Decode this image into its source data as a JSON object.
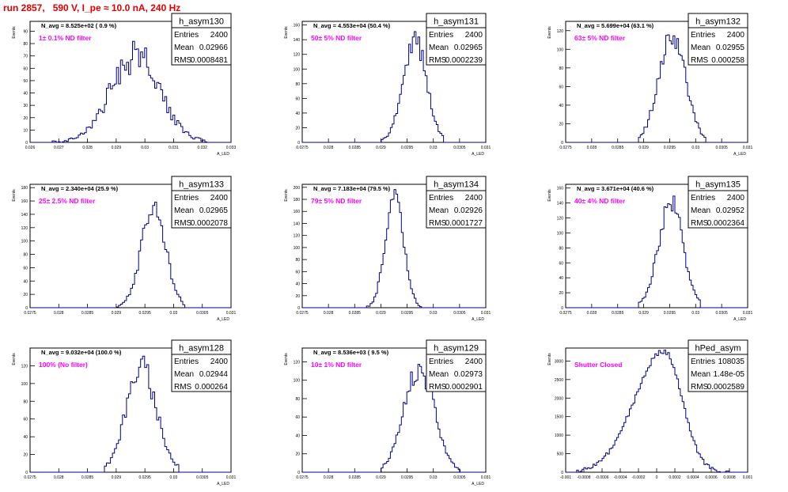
{
  "header": {
    "title": "run 2857,   590 V, I_pe ≈ 10.0 nA, 240 Hz"
  },
  "stats_labels": {
    "entries": "Entries",
    "mean": "Mean",
    "rms": "RMS"
  },
  "colors": {
    "histogram_line": "#00008b",
    "annotation": "#ff00ff",
    "title": "#e00000",
    "frame": "#000000"
  },
  "chart_data": [
    {
      "type": "histogram",
      "name": "h_asym130",
      "navg": "N_avg = 8.525e+02 ( 0.9 %)",
      "filter": "1± 0.1% ND filter",
      "entries": "2400",
      "mean": "0.02966",
      "rms": "0.0008481",
      "xlabel": "A_LED",
      "ylabel": "Events",
      "xlim": [
        0.026,
        0.033
      ],
      "ylim": [
        0,
        98
      ],
      "xticks": [
        0.026,
        0.027,
        0.028,
        0.029,
        0.03,
        0.031,
        0.032,
        0.033
      ],
      "xtick_labels": [
        "0.026",
        "0.027",
        "0.028",
        "0.029",
        "0.03",
        "0.031",
        "0.032",
        "0.033"
      ],
      "yticks": [
        0,
        10,
        20,
        30,
        40,
        50,
        60,
        70,
        80,
        90
      ],
      "ytick_labels": [
        "0",
        "10",
        "20",
        "30",
        "40",
        "50",
        "60",
        "70",
        "80",
        "90"
      ],
      "shape": {
        "mu": 0.02966,
        "sigma": 0.00085,
        "peak": 70,
        "noise": 0.22,
        "xmin": 0.0268,
        "xmax": 0.0322,
        "seed": 130
      }
    },
    {
      "type": "histogram",
      "name": "h_asym131",
      "navg": "N_avg = 4.553e+04 (50.4 %)",
      "filter": "50± 5% ND filter",
      "entries": "2400",
      "mean": "0.02965",
      "rms": "0.0002239",
      "xlabel": "A_LED",
      "ylabel": "Events",
      "xlim": [
        0.0275,
        0.031
      ],
      "ylim": [
        0,
        165
      ],
      "xticks": [
        0.0275,
        0.028,
        0.0285,
        0.029,
        0.0295,
        0.03,
        0.0305,
        0.031
      ],
      "xtick_labels": [
        "0.0275",
        "0.028",
        "0.0285",
        "0.029",
        "0.0295",
        "0.03",
        "0.0305",
        "0.031"
      ],
      "yticks": [
        0,
        20,
        40,
        60,
        80,
        100,
        120,
        140,
        160
      ],
      "ytick_labels": [
        "0",
        "20",
        "40",
        "60",
        "80",
        "100",
        "120",
        "140",
        "160"
      ],
      "shape": {
        "mu": 0.02965,
        "sigma": 0.000224,
        "peak": 140,
        "noise": 0.1,
        "xmin": 0.029,
        "xmax": 0.0302,
        "seed": 131
      }
    },
    {
      "type": "histogram",
      "name": "h_asym132",
      "navg": "N_avg = 5.699e+04 (63.1 %)",
      "filter": "63± 5% ND filter",
      "entries": "2400",
      "mean": "0.02955",
      "rms": "0.000258",
      "xlabel": "A_LED",
      "ylabel": "Events",
      "xlim": [
        0.0275,
        0.031
      ],
      "ylim": [
        0,
        130
      ],
      "xticks": [
        0.0275,
        0.028,
        0.0285,
        0.029,
        0.0295,
        0.03,
        0.0305,
        0.031
      ],
      "xtick_labels": [
        "0.0275",
        "0.028",
        "0.0285",
        "0.029",
        "0.0295",
        "0.03",
        "0.0305",
        "0.031"
      ],
      "yticks": [
        0,
        20,
        40,
        60,
        80,
        100,
        120
      ],
      "ytick_labels": [
        "0",
        "20",
        "40",
        "60",
        "80",
        "100",
        "120"
      ],
      "shape": {
        "mu": 0.02955,
        "sigma": 0.000258,
        "peak": 115,
        "noise": 0.1,
        "xmin": 0.0289,
        "xmax": 0.0302,
        "seed": 132
      }
    },
    {
      "type": "histogram",
      "name": "h_asym133",
      "navg": "N_avg = 2.340e+04 (25.9 %)",
      "filter": "25± 2.5% ND filter",
      "entries": "2400",
      "mean": "0.02965",
      "rms": "0.0002078",
      "xlabel": "A_LED",
      "ylabel": "Events",
      "xlim": [
        0.0275,
        0.031
      ],
      "ylim": [
        0,
        185
      ],
      "xticks": [
        0.0275,
        0.028,
        0.0285,
        0.029,
        0.0295,
        0.03,
        0.0305,
        0.031
      ],
      "xtick_labels": [
        "0.0275",
        "0.028",
        "0.0285",
        "0.029",
        "0.0295",
        "0.03",
        "0.0305",
        "0.031"
      ],
      "yticks": [
        0,
        20,
        40,
        60,
        80,
        100,
        120,
        140,
        160,
        180
      ],
      "ytick_labels": [
        "0",
        "20",
        "40",
        "60",
        "80",
        "100",
        "120",
        "140",
        "160",
        "180"
      ],
      "shape": {
        "mu": 0.02965,
        "sigma": 0.000208,
        "peak": 155,
        "noise": 0.1,
        "xmin": 0.029,
        "xmax": 0.0302,
        "seed": 133
      }
    },
    {
      "type": "histogram",
      "name": "h_asym134",
      "navg": "N_avg = 7.183e+04 (79.5 %)",
      "filter": "79± 5% ND filter",
      "entries": "2400",
      "mean": "0.02926",
      "rms": "0.0001727",
      "xlabel": "A_LED",
      "ylabel": "Events",
      "xlim": [
        0.0275,
        0.031
      ],
      "ylim": [
        0,
        205
      ],
      "xticks": [
        0.0275,
        0.028,
        0.0285,
        0.029,
        0.0295,
        0.03,
        0.0305,
        0.031
      ],
      "xtick_labels": [
        "0.0275",
        "0.028",
        "0.0285",
        "0.029",
        "0.0295",
        "0.03",
        "0.0305",
        "0.031"
      ],
      "yticks": [
        0,
        20,
        40,
        60,
        80,
        100,
        120,
        140,
        160,
        180,
        200
      ],
      "ytick_labels": [
        "0",
        "20",
        "40",
        "60",
        "80",
        "100",
        "120",
        "140",
        "160",
        "180",
        "200"
      ],
      "shape": {
        "mu": 0.02926,
        "sigma": 0.000173,
        "peak": 185,
        "noise": 0.08,
        "xmin": 0.0287,
        "xmax": 0.0298,
        "seed": 134
      }
    },
    {
      "type": "histogram",
      "name": "h_asym135",
      "navg": "N_avg = 3.671e+04 (40.6 %)",
      "filter": "40± 4% ND filter",
      "entries": "2400",
      "mean": "0.02952",
      "rms": "0.0002364",
      "xlabel": "A_LED",
      "ylabel": "Events",
      "xlim": [
        0.0275,
        0.031
      ],
      "ylim": [
        0,
        165
      ],
      "xticks": [
        0.0275,
        0.028,
        0.0285,
        0.029,
        0.0295,
        0.03,
        0.0305,
        0.031
      ],
      "xtick_labels": [
        "0.0275",
        "0.028",
        "0.0285",
        "0.029",
        "0.0295",
        "0.03",
        "0.0305",
        "0.031"
      ],
      "yticks": [
        0,
        20,
        40,
        60,
        80,
        100,
        120,
        140,
        160
      ],
      "ytick_labels": [
        "0",
        "20",
        "40",
        "60",
        "80",
        "100",
        "120",
        "140",
        "160"
      ],
      "shape": {
        "mu": 0.02952,
        "sigma": 0.000236,
        "peak": 140,
        "noise": 0.1,
        "xmin": 0.0289,
        "xmax": 0.0301,
        "seed": 135
      }
    },
    {
      "type": "histogram",
      "name": "h_asym128",
      "navg": "N_avg = 9.032e+04 (100.0 %)",
      "filter": "100% (No filter)",
      "entries": "2400",
      "mean": "0.02944",
      "rms": "0.000264",
      "xlabel": "A_LED",
      "ylabel": "Events",
      "xlim": [
        0.0275,
        0.031
      ],
      "ylim": [
        0,
        140
      ],
      "xticks": [
        0.0275,
        0.028,
        0.0285,
        0.029,
        0.0295,
        0.03,
        0.0305,
        0.031
      ],
      "xtick_labels": [
        "0.0275",
        "0.028",
        "0.0285",
        "0.029",
        "0.0295",
        "0.03",
        "0.0305",
        "0.031"
      ],
      "yticks": [
        0,
        20,
        40,
        60,
        80,
        100,
        120
      ],
      "ytick_labels": [
        "0",
        "20",
        "40",
        "60",
        "80",
        "100",
        "120"
      ],
      "shape": {
        "mu": 0.02944,
        "sigma": 0.000264,
        "peak": 118,
        "noise": 0.12,
        "xmin": 0.0288,
        "xmax": 0.0301,
        "seed": 128
      }
    },
    {
      "type": "histogram",
      "name": "h_asym129",
      "navg": "N_avg = 8.536e+03 ( 9.5 %)",
      "filter": "10± 1% ND filter",
      "entries": "2400",
      "mean": "0.02973",
      "rms": "0.0002901",
      "xlabel": "A_LED",
      "ylabel": "Events",
      "xlim": [
        0.0275,
        0.031
      ],
      "ylim": [
        0,
        135
      ],
      "xticks": [
        0.0275,
        0.028,
        0.0285,
        0.029,
        0.0295,
        0.03,
        0.0305,
        0.031
      ],
      "xtick_labels": [
        "0.0275",
        "0.028",
        "0.0285",
        "0.029",
        "0.0295",
        "0.03",
        "0.0305",
        "0.031"
      ],
      "yticks": [
        0,
        20,
        40,
        60,
        80,
        100,
        120
      ],
      "ytick_labels": [
        "0",
        "20",
        "40",
        "60",
        "80",
        "100",
        "120"
      ],
      "shape": {
        "mu": 0.02973,
        "sigma": 0.00029,
        "peak": 112,
        "noise": 0.14,
        "xmin": 0.029,
        "xmax": 0.0305,
        "seed": 129
      }
    },
    {
      "type": "histogram",
      "name": "hPed_asym",
      "navg": "",
      "filter": "Shutter Closed",
      "entries": "108035",
      "mean": "1.48e-05",
      "rms": "0.0002589",
      "xlabel": "",
      "ylabel": "Events",
      "xlim": [
        -0.001,
        0.001
      ],
      "ylim": [
        0,
        3350
      ],
      "xticks": [
        -0.001,
        -0.0008,
        -0.0006,
        -0.0004,
        -0.0002,
        0,
        0.0002,
        0.0004,
        0.0006,
        0.0008,
        0.001
      ],
      "xtick_labels": [
        "-0.001",
        "-0.0008",
        "-0.0006",
        "-0.0004",
        "-0.0002",
        "0",
        "0.0002",
        "0.0004",
        "0.0006",
        "0.0008",
        "0.001"
      ],
      "yticks": [
        0,
        500,
        1000,
        1500,
        2000,
        2500,
        3000
      ],
      "ytick_labels": [
        "0",
        "500",
        "1000",
        "1500",
        "2000",
        "2500",
        "3000"
      ],
      "shape": {
        "mu": 8e-05,
        "sigma": 0.00026,
        "sigma_left": 0.00032,
        "sigma_right": 0.0002,
        "peak": 3250,
        "noise": 0.015,
        "xmin": -0.00088,
        "xmax": 0.00082,
        "seed": 200
      }
    }
  ]
}
